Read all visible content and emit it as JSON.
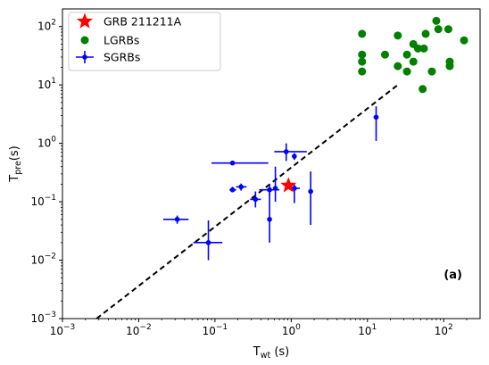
{
  "chart_data": {
    "type": "scatter",
    "xscale": "log",
    "yscale": "log",
    "xlim": [
      0.001,
      300
    ],
    "ylim": [
      0.001,
      200
    ],
    "grid": false,
    "legend_position": "top-left",
    "xlabel": {
      "main": "T",
      "sub": "wt",
      "unit": " (s)"
    },
    "ylabel": {
      "main": "T",
      "sub": "pre",
      "unit": "(s)"
    },
    "x_ticks": [
      {
        "value": 0.001,
        "base": "10",
        "exp": "−3"
      },
      {
        "value": 0.01,
        "base": "10",
        "exp": "−2"
      },
      {
        "value": 0.1,
        "base": "10",
        "exp": "−1"
      },
      {
        "value": 1,
        "base": "10",
        "exp": "0"
      },
      {
        "value": 10,
        "base": "10",
        "exp": "1"
      },
      {
        "value": 100,
        "base": "10",
        "exp": "2"
      }
    ],
    "y_ticks": [
      {
        "value": 0.001,
        "base": "10",
        "exp": "−3"
      },
      {
        "value": 0.01,
        "base": "10",
        "exp": "−2"
      },
      {
        "value": 0.1,
        "base": "10",
        "exp": "−1"
      },
      {
        "value": 1,
        "base": "10",
        "exp": "0"
      },
      {
        "value": 10,
        "base": "10",
        "exp": "1"
      },
      {
        "value": 100,
        "base": "10",
        "exp": "2"
      }
    ],
    "panel_label": "(a)",
    "colors": {
      "grb": "#ff0000",
      "lgrb": "#008000",
      "sgrb": "#0000ff",
      "fit": "#000000"
    },
    "series": [
      {
        "name": "GRB 211211A",
        "marker": "star",
        "points": [
          {
            "x": 0.92,
            "y": 0.19
          }
        ]
      },
      {
        "name": "LGRBs",
        "marker": "circle",
        "points": [
          {
            "x": 8.5,
            "y": 75
          },
          {
            "x": 8.5,
            "y": 33
          },
          {
            "x": 8.5,
            "y": 25
          },
          {
            "x": 8.5,
            "y": 17
          },
          {
            "x": 17,
            "y": 33
          },
          {
            "x": 25,
            "y": 70
          },
          {
            "x": 25,
            "y": 21
          },
          {
            "x": 33,
            "y": 33
          },
          {
            "x": 33,
            "y": 17
          },
          {
            "x": 40,
            "y": 50
          },
          {
            "x": 40,
            "y": 25
          },
          {
            "x": 46,
            "y": 42
          },
          {
            "x": 53,
            "y": 8.5
          },
          {
            "x": 55,
            "y": 42
          },
          {
            "x": 58,
            "y": 75
          },
          {
            "x": 70,
            "y": 17
          },
          {
            "x": 80,
            "y": 125
          },
          {
            "x": 85,
            "y": 90
          },
          {
            "x": 115,
            "y": 90
          },
          {
            "x": 120,
            "y": 25
          },
          {
            "x": 120,
            "y": 21
          },
          {
            "x": 185,
            "y": 58
          }
        ]
      },
      {
        "name": "SGRBs",
        "marker": "errorbar",
        "points": [
          {
            "x": 0.032,
            "y": 0.05,
            "xerr": [
              0.021,
              0.045
            ],
            "yerr": [
              0.042,
              0.058
            ]
          },
          {
            "x": 0.082,
            "y": 0.02,
            "xerr": [
              0.052,
              0.125
            ],
            "yerr": [
              0.01,
              0.048
            ]
          },
          {
            "x": 0.17,
            "y": 0.46,
            "xerr": [
              0.09,
              0.5
            ],
            "yerr": [
              0.44,
              0.48
            ]
          },
          {
            "x": 0.17,
            "y": 0.16,
            "xerr": [
              0.155,
              0.19
            ],
            "yerr": [
              0.145,
              0.18
            ]
          },
          {
            "x": 0.22,
            "y": 0.18,
            "xerr": [
              0.19,
              0.26
            ],
            "yerr": [
              0.155,
              0.205
            ]
          },
          {
            "x": 0.34,
            "y": 0.11,
            "xerr": [
              0.29,
              0.4
            ],
            "yerr": [
              0.08,
              0.15
            ]
          },
          {
            "x": 0.52,
            "y": 0.05,
            "xerr": [
              0.5,
              0.54
            ],
            "yerr": [
              0.02,
              0.14
            ]
          },
          {
            "x": 0.52,
            "y": 0.16,
            "xerr": [
              0.38,
              0.7
            ],
            "yerr": [
              0.13,
              0.2
            ]
          },
          {
            "x": 0.62,
            "y": 0.17,
            "xerr": [
              0.58,
              0.66
            ],
            "yerr": [
              0.1,
              0.4
            ]
          },
          {
            "x": 0.86,
            "y": 0.72,
            "xerr": [
              0.6,
              1.6
            ],
            "yerr": [
              0.5,
              1.0
            ]
          },
          {
            "x": 1.1,
            "y": 0.6,
            "xerr": [
              1.05,
              1.15
            ],
            "yerr": [
              0.52,
              0.68
            ]
          },
          {
            "x": 1.1,
            "y": 0.17,
            "xerr": [
              0.95,
              1.3
            ],
            "yerr": [
              0.095,
              0.2
            ]
          },
          {
            "x": 1.8,
            "y": 0.15,
            "xerr": [
              1.75,
              1.85
            ],
            "yerr": [
              0.04,
              0.33
            ]
          },
          {
            "x": 13,
            "y": 2.8,
            "xerr": [
              12,
              14
            ],
            "yerr": [
              1.1,
              4.3
            ]
          }
        ]
      }
    ],
    "fit_line": {
      "style": "dashed",
      "from": {
        "x": 0.0028,
        "y": 0.001
      },
      "to": {
        "x": 25,
        "y": 10
      }
    }
  }
}
